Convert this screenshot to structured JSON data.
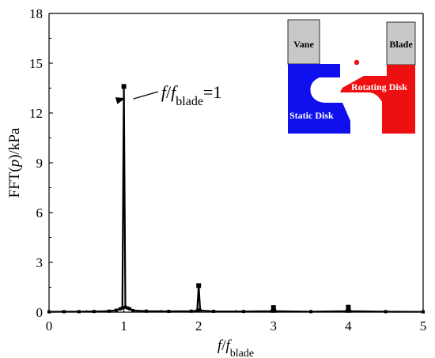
{
  "chart_data": {
    "type": "line",
    "xlabel": {
      "italic": "f",
      "mid": "/",
      "italic2": "f",
      "sub": "blade"
    },
    "ylabel": {
      "pre": "FFT(",
      "italic": "p",
      "post": ")/kPa"
    },
    "xlim": [
      0,
      5
    ],
    "ylim": [
      0,
      18
    ],
    "x_ticks": [
      "0",
      "1",
      "2",
      "3",
      "4",
      "5"
    ],
    "y_ticks": [
      "0",
      "3",
      "6",
      "9",
      "12",
      "15",
      "18"
    ],
    "grid": false,
    "series": [
      {
        "color": "#000000",
        "marker": "square",
        "points": [
          [
            0.0,
            0.02
          ],
          [
            0.2,
            0.03
          ],
          [
            0.4,
            0.03
          ],
          [
            0.6,
            0.04
          ],
          [
            0.8,
            0.06
          ],
          [
            0.9,
            0.12
          ],
          [
            0.95,
            0.2
          ],
          [
            0.98,
            0.25
          ],
          [
            1.0,
            13.6
          ],
          [
            1.02,
            0.3
          ],
          [
            1.05,
            0.25
          ],
          [
            1.08,
            0.2
          ],
          [
            1.12,
            0.1
          ],
          [
            1.3,
            0.06
          ],
          [
            1.6,
            0.05
          ],
          [
            1.9,
            0.06
          ],
          [
            1.98,
            0.08
          ],
          [
            2.0,
            1.6
          ],
          [
            2.02,
            0.1
          ],
          [
            2.2,
            0.05
          ],
          [
            2.6,
            0.04
          ],
          [
            2.98,
            0.06
          ],
          [
            3.0,
            0.28
          ],
          [
            3.02,
            0.06
          ],
          [
            3.5,
            0.03
          ],
          [
            3.98,
            0.06
          ],
          [
            4.0,
            0.3
          ],
          [
            4.02,
            0.06
          ],
          [
            4.5,
            0.03
          ],
          [
            5.0,
            0.02
          ]
        ],
        "markers": [
          [
            1.0,
            13.6
          ],
          [
            2.0,
            1.6
          ],
          [
            3.0,
            0.28
          ],
          [
            4.0,
            0.3
          ]
        ]
      }
    ],
    "annotation": {
      "text_italic": "f",
      "text_mid": "/",
      "text_italic2": "f",
      "text_sub": "blade",
      "text_post": "=1",
      "points_to": [
        1.0,
        12.9
      ],
      "text_at": [
        1.5,
        13.0
      ]
    },
    "inset": {
      "labels": {
        "vane": "Vane",
        "blade": "Blade",
        "static": "Static Disk",
        "rotating": "Rotating Disk"
      },
      "colors": {
        "static": "#1010ee",
        "rotating": "#ee1010",
        "block": "#c8c8c8",
        "point": "#ee1010"
      }
    }
  }
}
